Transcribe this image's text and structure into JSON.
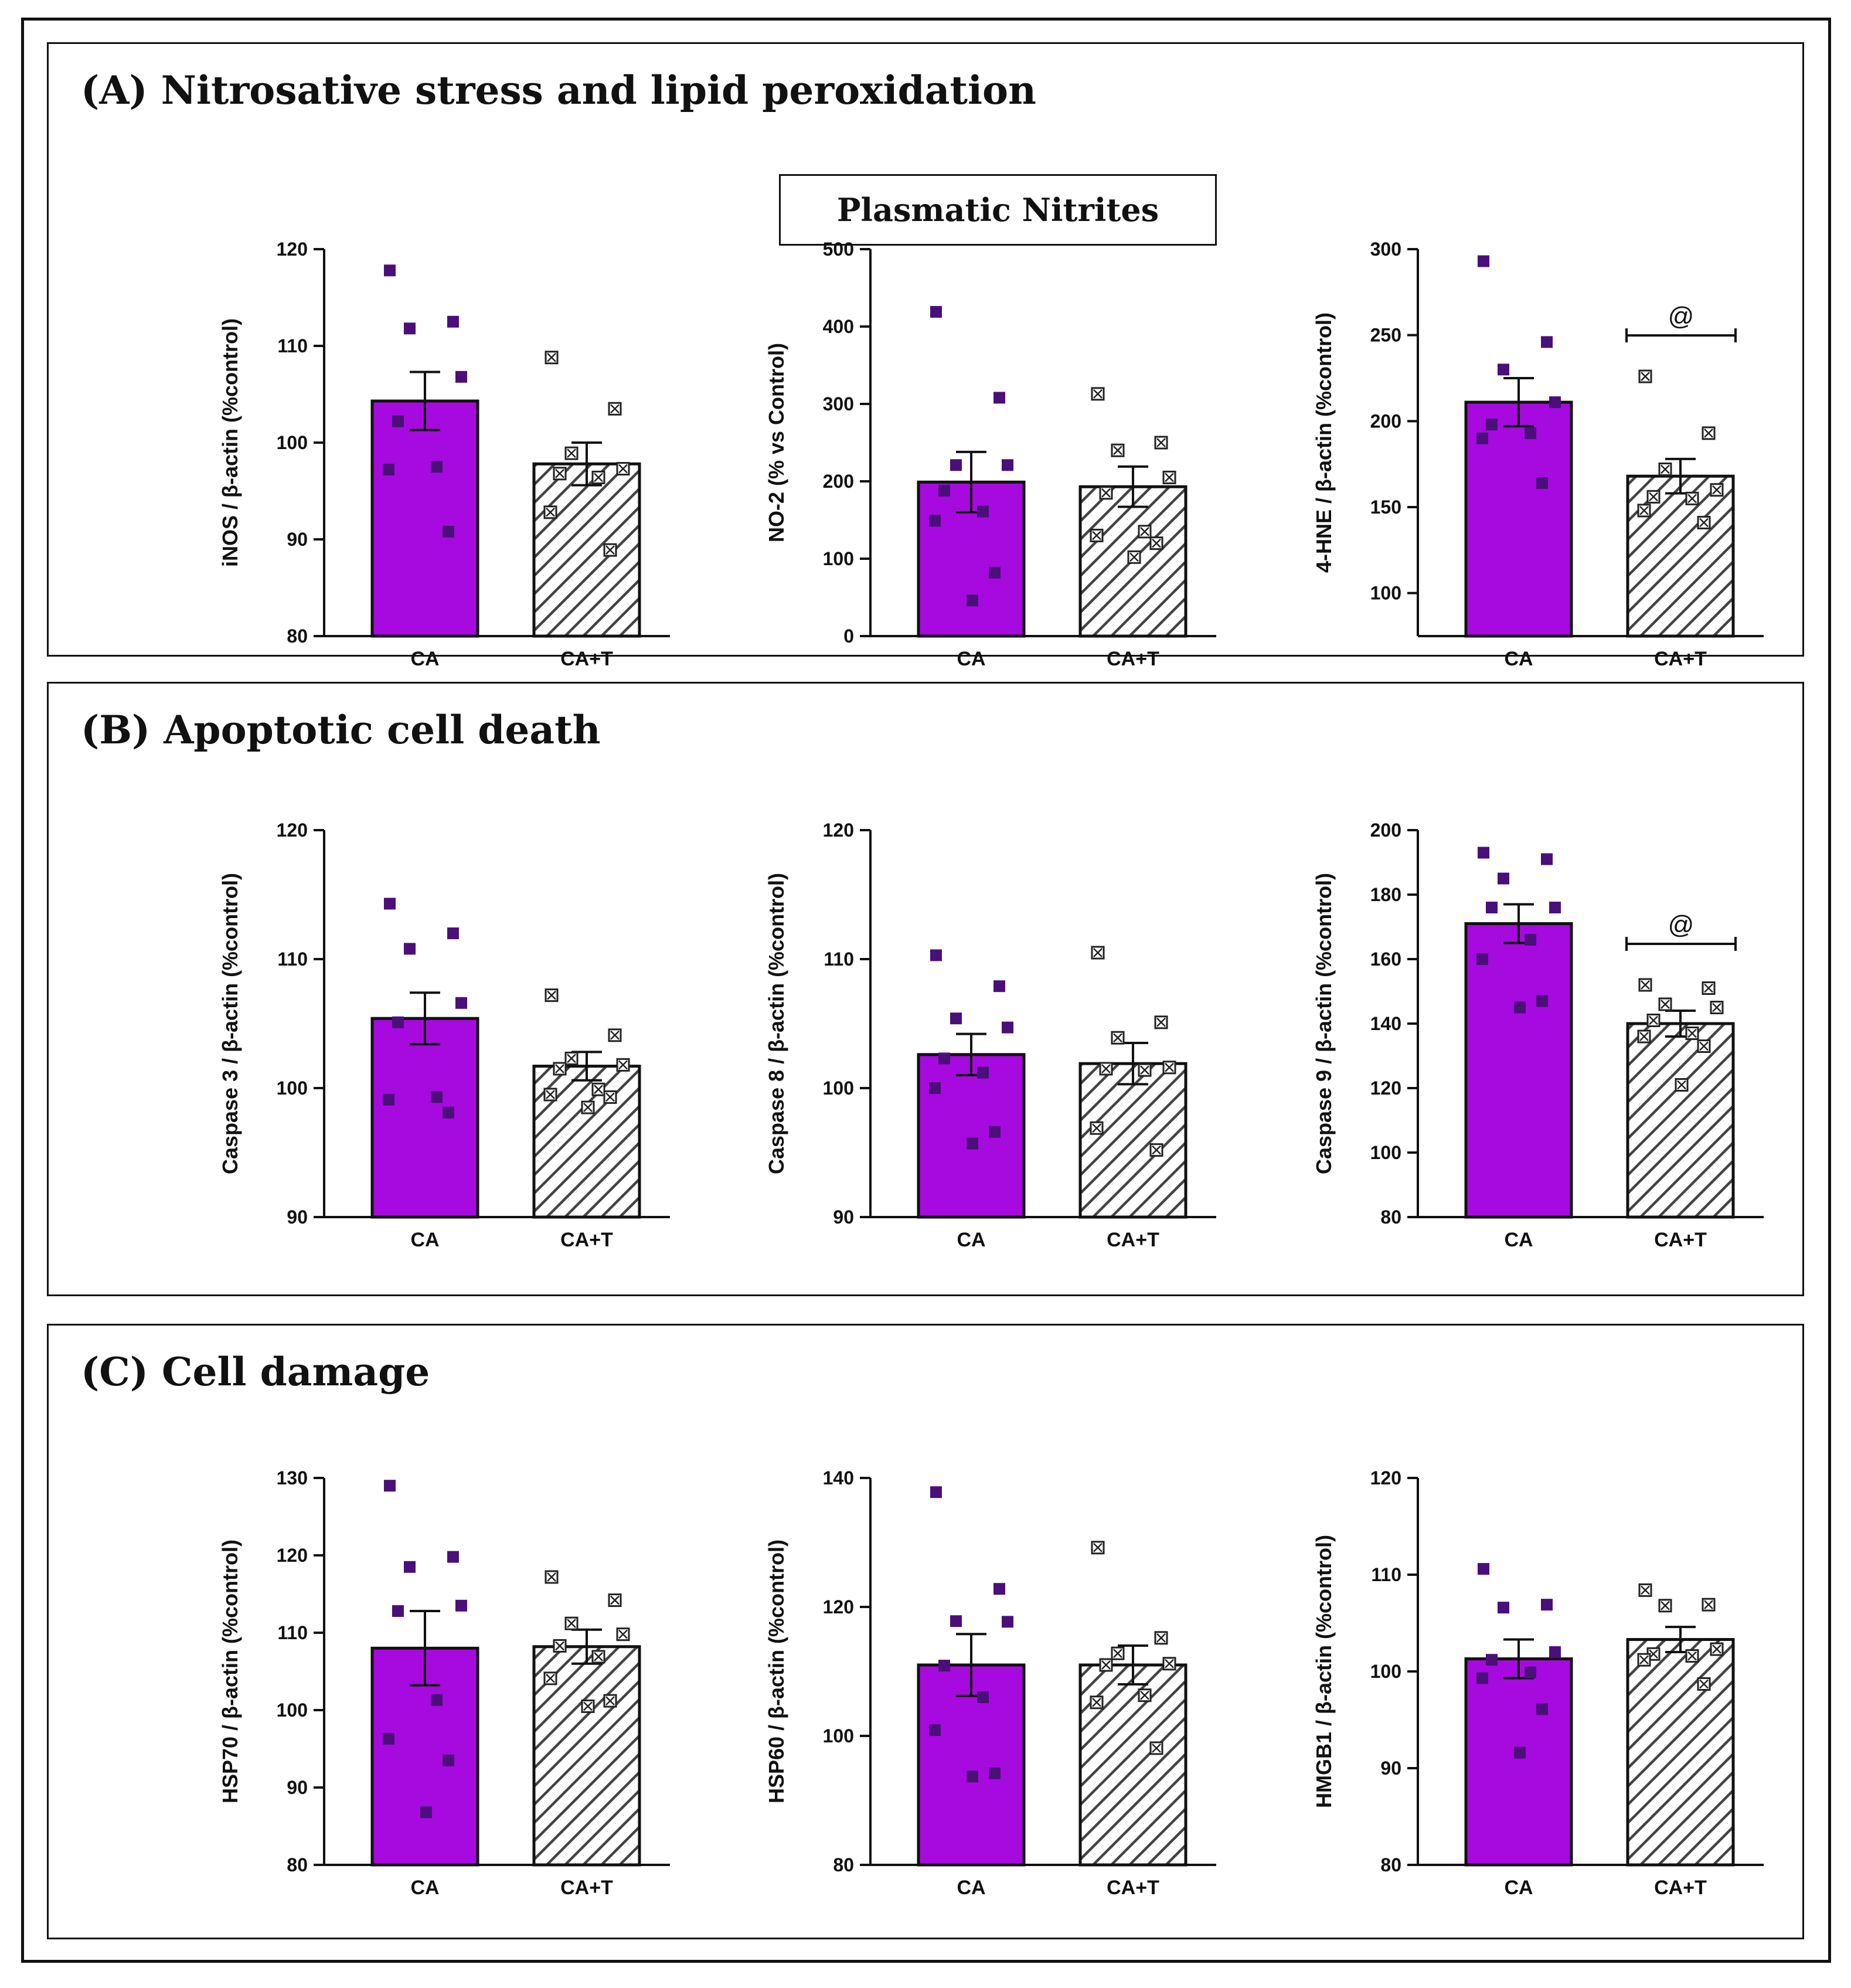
{
  "colors": {
    "ca_fill": "#A60ADF",
    "point_ca": "#4B0F79",
    "hatch": "#444444",
    "text": "#111111"
  },
  "sections": [
    {
      "label": "(A) Nitrosative stress and lipid peroxidation",
      "subtitle": "Plasmatic Nitrites"
    },
    {
      "label": "(B) Apoptotic cell death"
    },
    {
      "label": "(C) Cell damage"
    }
  ],
  "chart_data": [
    {
      "type": "bar",
      "section": "A",
      "ylabel": "iNOS / β-actin (%control)",
      "ylim": [
        80,
        120
      ],
      "yticks": [
        80,
        90,
        100,
        110,
        120
      ],
      "categories": [
        "CA",
        "CA+T"
      ],
      "series": [
        {
          "name": "CA",
          "mean": 104.3,
          "sem": 3.0,
          "points": [
            117.8,
            112.5,
            111.8,
            106.8,
            102.2,
            97.5,
            97.2,
            90.8
          ]
        },
        {
          "name": "CA+T",
          "mean": 97.8,
          "sem": 2.2,
          "points": [
            108.8,
            103.5,
            98.9,
            97.3,
            96.8,
            96.4,
            92.8,
            88.9
          ]
        }
      ],
      "annotation": ""
    },
    {
      "type": "bar",
      "section": "A",
      "ylabel": "NO-2 (% vs Control)",
      "ylim": [
        0,
        500
      ],
      "yticks": [
        0,
        100,
        200,
        300,
        400,
        500
      ],
      "categories": [
        "CA",
        "CA+T"
      ],
      "series": [
        {
          "name": "CA",
          "mean": 199,
          "sem": 39,
          "points": [
            419,
            308,
            221,
            221,
            188,
            161,
            149,
            82,
            46
          ]
        },
        {
          "name": "CA+T",
          "mean": 193,
          "sem": 26,
          "points": [
            313,
            250,
            240,
            205,
            185,
            135,
            130,
            120,
            102
          ]
        }
      ],
      "annotation": ""
    },
    {
      "type": "bar",
      "section": "A",
      "ylabel": "4-HNE / β-actin (%control)",
      "ylim": [
        75,
        300
      ],
      "yticks": [
        100,
        150,
        200,
        250,
        300
      ],
      "categories": [
        "CA",
        "CA+T"
      ],
      "series": [
        {
          "name": "CA",
          "mean": 211,
          "sem": 14,
          "points": [
            293,
            246,
            230,
            211,
            198,
            193,
            190,
            164
          ]
        },
        {
          "name": "CA+T",
          "mean": 168,
          "sem": 10,
          "points": [
            226,
            193,
            172,
            160,
            156,
            155,
            148,
            141
          ]
        }
      ],
      "annotation": "@"
    },
    {
      "type": "bar",
      "section": "B",
      "ylabel": "Caspase 3 / β-actin (%control)",
      "ylim": [
        90,
        120
      ],
      "yticks": [
        90,
        100,
        110,
        120
      ],
      "categories": [
        "CA",
        "CA+T"
      ],
      "series": [
        {
          "name": "CA",
          "mean": 105.4,
          "sem": 2.0,
          "points": [
            114.3,
            112.0,
            110.8,
            106.6,
            105.1,
            99.3,
            99.1,
            98.1
          ]
        },
        {
          "name": "CA+T",
          "mean": 101.7,
          "sem": 1.1,
          "points": [
            107.2,
            104.1,
            102.3,
            101.8,
            101.5,
            99.9,
            99.5,
            99.3,
            98.5
          ]
        }
      ],
      "annotation": ""
    },
    {
      "type": "bar",
      "section": "B",
      "ylabel": "Caspase 8 / β-actin (%control)",
      "ylim": [
        90,
        120
      ],
      "yticks": [
        90,
        100,
        110,
        120
      ],
      "categories": [
        "CA",
        "CA+T"
      ],
      "series": [
        {
          "name": "CA",
          "mean": 102.6,
          "sem": 1.6,
          "points": [
            110.3,
            107.9,
            105.4,
            104.7,
            102.3,
            101.2,
            100.0,
            96.6,
            95.7
          ]
        },
        {
          "name": "CA+T",
          "mean": 101.9,
          "sem": 1.6,
          "points": [
            110.5,
            105.1,
            103.9,
            101.6,
            101.5,
            101.4,
            96.9,
            95.2
          ]
        }
      ],
      "annotation": ""
    },
    {
      "type": "bar",
      "section": "B",
      "ylabel": "Caspase 9 / β-actin (%control)",
      "ylim": [
        80,
        200
      ],
      "yticks": [
        80,
        100,
        120,
        140,
        160,
        180,
        200
      ],
      "categories": [
        "CA",
        "CA+T"
      ],
      "series": [
        {
          "name": "CA",
          "mean": 171,
          "sem": 6,
          "points": [
            193,
            191,
            185,
            176,
            176,
            166,
            160,
            147,
            145
          ]
        },
        {
          "name": "CA+T",
          "mean": 140,
          "sem": 4,
          "points": [
            152,
            151,
            146,
            145,
            141,
            137,
            136,
            133,
            121
          ]
        }
      ],
      "annotation": "@"
    },
    {
      "type": "bar",
      "section": "C",
      "ylabel": "HSP70 / β-actin (%control)",
      "ylim": [
        80,
        130
      ],
      "yticks": [
        80,
        90,
        100,
        110,
        120,
        130
      ],
      "categories": [
        "CA",
        "CA+T"
      ],
      "series": [
        {
          "name": "CA",
          "mean": 108,
          "sem": 4.8,
          "points": [
            129,
            119.8,
            118.5,
            113.5,
            112.8,
            101.3,
            96.3,
            93.5,
            86.8
          ]
        },
        {
          "name": "CA+T",
          "mean": 108.2,
          "sem": 2.2,
          "points": [
            117.2,
            114.2,
            111.2,
            109.8,
            108.3,
            106.9,
            104.1,
            101.2,
            100.5
          ]
        }
      ],
      "annotation": ""
    },
    {
      "type": "bar",
      "section": "C",
      "ylabel": "HSP60 / β-actin (%control)",
      "ylim": [
        80,
        140
      ],
      "yticks": [
        80,
        100,
        120,
        140
      ],
      "categories": [
        "CA",
        "CA+T"
      ],
      "series": [
        {
          "name": "CA",
          "mean": 111,
          "sem": 4.8,
          "points": [
            137.8,
            122.8,
            117.8,
            117.7,
            110.9,
            106.0,
            100.9,
            94.2,
            93.7
          ]
        },
        {
          "name": "CA+T",
          "mean": 111,
          "sem": 3.0,
          "points": [
            129.2,
            115.2,
            112.8,
            111.2,
            111.0,
            106.3,
            105.2,
            98.1
          ]
        }
      ],
      "annotation": ""
    },
    {
      "type": "bar",
      "section": "C",
      "ylabel": "HMGB1 / β-actin (%control)",
      "ylim": [
        80,
        120
      ],
      "yticks": [
        80,
        90,
        100,
        110,
        120
      ],
      "categories": [
        "CA",
        "CA+T"
      ],
      "series": [
        {
          "name": "CA",
          "mean": 101.3,
          "sem": 2.0,
          "points": [
            110.6,
            106.9,
            106.6,
            102.0,
            101.2,
            99.9,
            99.3,
            96.1,
            91.6
          ]
        },
        {
          "name": "CA+T",
          "mean": 103.3,
          "sem": 1.3,
          "points": [
            108.4,
            106.9,
            106.8,
            102.3,
            101.8,
            101.6,
            101.2,
            98.7
          ]
        }
      ],
      "annotation": ""
    }
  ]
}
